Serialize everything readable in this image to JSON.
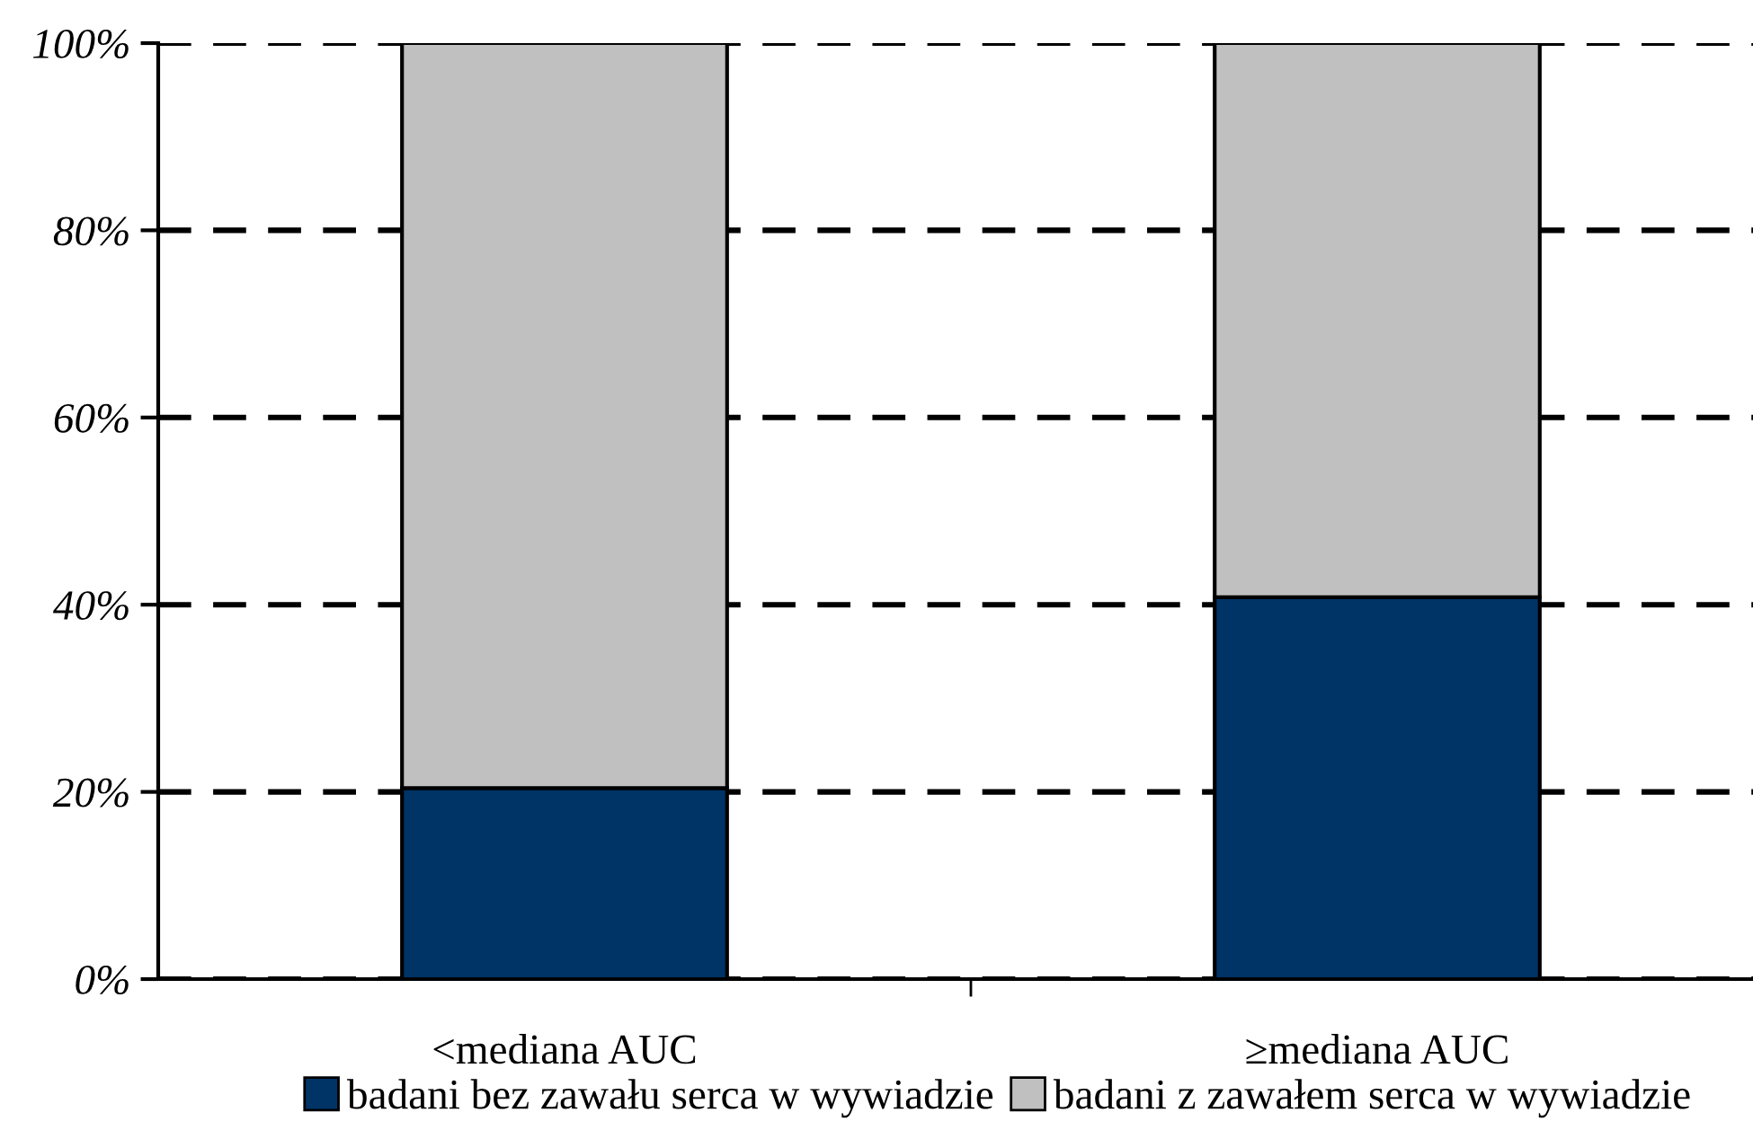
{
  "chart_data": {
    "type": "bar",
    "stacked": true,
    "categories": [
      "<mediana AUC",
      "≥mediana AUC"
    ],
    "series": [
      {
        "name": "badani bez zawału serca w wywiadzie",
        "color": "#003366",
        "values": [
          20.4,
          40.8
        ]
      },
      {
        "name": "badani z zawałem serca w wywiadzie",
        "color": "#c0c0c0",
        "values": [
          79.6,
          59.2
        ]
      }
    ],
    "ylim": [
      0,
      100
    ],
    "yticks": [
      {
        "value": 0,
        "label": "0%"
      },
      {
        "value": 20,
        "label": "20%"
      },
      {
        "value": 40,
        "label": "40%"
      },
      {
        "value": 60,
        "label": "60%"
      },
      {
        "value": 80,
        "label": "80%"
      },
      {
        "value": 100,
        "label": "100%"
      }
    ],
    "grid": "y",
    "line_style": "dashed",
    "legend": "bottom"
  }
}
